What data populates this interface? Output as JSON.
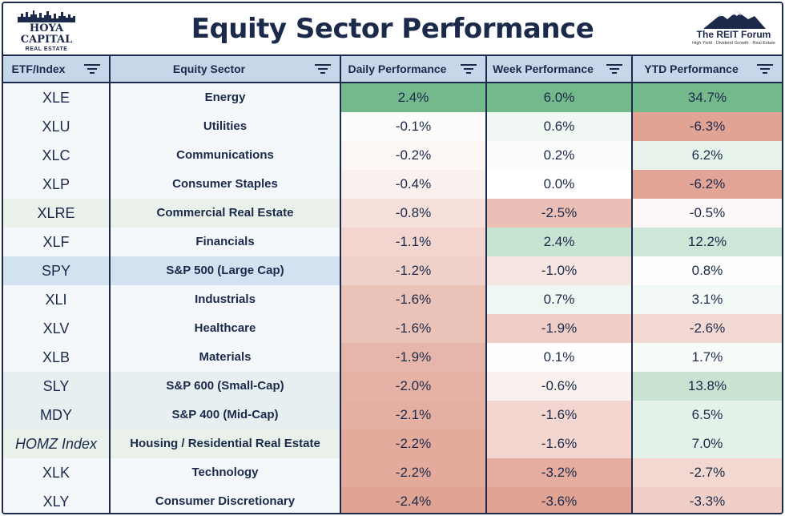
{
  "title": "Equity Sector Performance",
  "logo_left": {
    "line1": "HOYA CAPITAL",
    "line2": "REAL ESTATE"
  },
  "logo_right": {
    "name": "The REIT Forum",
    "tagline": "High Yield · Dividend Growth · Real Estate"
  },
  "columns": [
    "ETF/Index",
    "Equity Sector",
    "Daily Performance",
    "Week Performance",
    "YTD Performance"
  ],
  "colors": {
    "border": "#1b2a4a",
    "header_bg": "#c5d7e8",
    "green_strong": "#74b98c",
    "red_strong": "#e1a394",
    "neutral": "#ffffff"
  },
  "rows": [
    {
      "etf": "XLE",
      "sector": "Energy",
      "daily": "2.4%",
      "week": "6.0%",
      "ytd": "34.7%"
    },
    {
      "etf": "XLU",
      "sector": "Utilities",
      "daily": "-0.1%",
      "week": "0.6%",
      "ytd": "-6.3%"
    },
    {
      "etf": "XLC",
      "sector": "Communications",
      "daily": "-0.2%",
      "week": "0.2%",
      "ytd": "6.2%"
    },
    {
      "etf": "XLP",
      "sector": "Consumer Staples",
      "daily": "-0.4%",
      "week": "0.0%",
      "ytd": "-6.2%"
    },
    {
      "etf": "XLRE",
      "sector": "Commercial Real Estate",
      "daily": "-0.8%",
      "week": "-2.5%",
      "ytd": "-0.5%"
    },
    {
      "etf": "XLF",
      "sector": "Financials",
      "daily": "-1.1%",
      "week": "2.4%",
      "ytd": "12.2%"
    },
    {
      "etf": "SPY",
      "sector": "S&P 500 (Large Cap)",
      "daily": "-1.2%",
      "week": "-1.0%",
      "ytd": "0.8%"
    },
    {
      "etf": "XLI",
      "sector": "Industrials",
      "daily": "-1.6%",
      "week": "0.7%",
      "ytd": "3.1%"
    },
    {
      "etf": "XLV",
      "sector": "Healthcare",
      "daily": "-1.6%",
      "week": "-1.9%",
      "ytd": "-2.6%"
    },
    {
      "etf": "XLB",
      "sector": "Materials",
      "daily": "-1.9%",
      "week": "0.1%",
      "ytd": "1.7%"
    },
    {
      "etf": "SLY",
      "sector": "S&P 600 (Small-Cap)",
      "daily": "-2.0%",
      "week": "-0.6%",
      "ytd": "13.8%"
    },
    {
      "etf": "MDY",
      "sector": "S&P 400 (Mid-Cap)",
      "daily": "-2.1%",
      "week": "-1.6%",
      "ytd": "6.5%"
    },
    {
      "etf": "HOMZ Index",
      "sector": "Housing / Residential Real Estate",
      "daily": "-2.2%",
      "week": "-1.6%",
      "ytd": "7.0%"
    },
    {
      "etf": "XLK",
      "sector": "Technology",
      "daily": "-2.2%",
      "week": "-3.2%",
      "ytd": "-2.7%"
    },
    {
      "etf": "XLY",
      "sector": "Consumer Discretionary",
      "daily": "-2.4%",
      "week": "-3.6%",
      "ytd": "-3.3%"
    }
  ]
}
